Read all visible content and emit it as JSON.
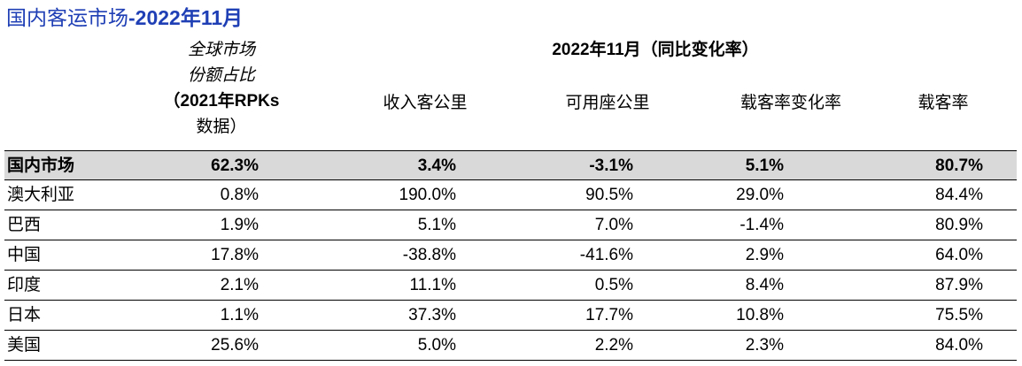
{
  "title": {
    "prefix": "国内客运市场",
    "suffix": "-2022年11月"
  },
  "headers": {
    "share_line1": "全球市场",
    "share_line2": "份额占比",
    "share_line3": "（2021年RPKs",
    "share_line4": "数据）",
    "period": "2022年11月（同比变化率）",
    "rpk": "收入客公里",
    "ask": "可用座公里",
    "plf_change": "载客率变化率",
    "plf": "载客率"
  },
  "rows": [
    {
      "market": "国内市场",
      "share": "62.3%",
      "rpk": "3.4%",
      "ask": "-3.1%",
      "plf_change": "5.1%",
      "plf": "80.7%"
    },
    {
      "market": "澳大利亚",
      "share": "0.8%",
      "rpk": "190.0%",
      "ask": "90.5%",
      "plf_change": "29.0%",
      "plf": "84.4%"
    },
    {
      "market": "巴西",
      "share": "1.9%",
      "rpk": "5.1%",
      "ask": "7.0%",
      "plf_change": "-1.4%",
      "plf": "80.9%"
    },
    {
      "market": "中国",
      "share": "17.8%",
      "rpk": "-38.8%",
      "ask": "-41.6%",
      "plf_change": "2.9%",
      "plf": "64.0%"
    },
    {
      "market": "印度",
      "share": "2.1%",
      "rpk": "11.1%",
      "ask": "0.5%",
      "plf_change": "8.4%",
      "plf": "87.9%"
    },
    {
      "market": "日本",
      "share": "1.1%",
      "rpk": "37.3%",
      "ask": "17.7%",
      "plf_change": "10.8%",
      "plf": "75.5%"
    },
    {
      "market": "美国",
      "share": "25.6%",
      "rpk": "5.0%",
      "ask": "2.2%",
      "plf_change": "2.3%",
      "plf": "84.0%"
    }
  ]
}
